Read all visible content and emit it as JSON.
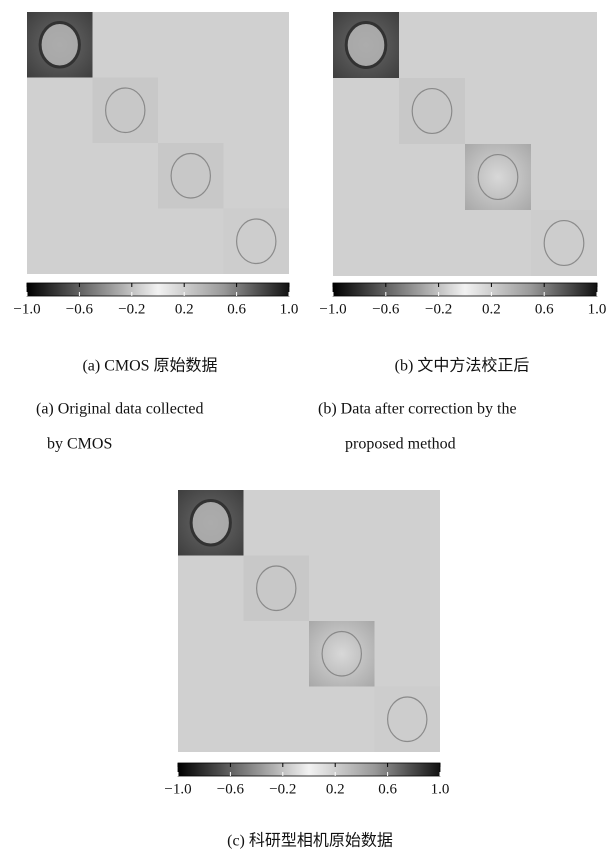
{
  "panels": [
    {
      "caption_zh": "(a) CMOS 原始数据",
      "caption_en": [
        "(a) Original data collected",
        "by CMOS"
      ],
      "colorbar_ticks": [
        "−1.0",
        "−0.6",
        "−0.2",
        "0.2",
        "0.6",
        "1.0"
      ]
    },
    {
      "caption_zh": "(b) 文中方法校正后",
      "caption_en": [
        "(b) Data after correction by the",
        "proposed method"
      ],
      "colorbar_ticks": [
        "−1.0",
        "−0.6",
        "−0.2",
        "0.2",
        "0.6",
        "1.0"
      ]
    },
    {
      "caption_zh": "(c) 科研型相机原始数据",
      "colorbar_ticks": [
        "−1.0",
        "−0.6",
        "−0.2",
        "0.2",
        "0.6",
        "1.0"
      ]
    }
  ]
}
